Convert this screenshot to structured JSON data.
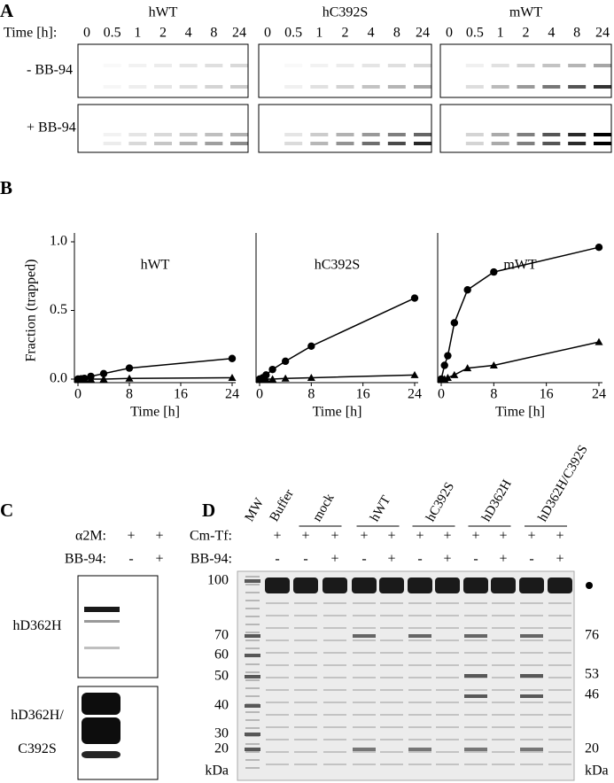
{
  "panel_labels": [
    "A",
    "B",
    "C",
    "D"
  ],
  "panel_a": {
    "time_label": "Time [h]:",
    "rows": [
      "- BB-94",
      "+ BB-94"
    ],
    "groups": [
      {
        "title": "hWT",
        "lanes": [
          "0",
          "0.5",
          "1",
          "2",
          "4",
          "8",
          "24"
        ]
      },
      {
        "title": "hC392S",
        "lanes": [
          "0",
          "0.5",
          "1",
          "2",
          "4",
          "8",
          "24"
        ]
      },
      {
        "title": "mWT",
        "lanes": [
          "0",
          "0.5",
          "1",
          "2",
          "4",
          "8",
          "24"
        ]
      }
    ]
  },
  "chart_data": [
    {
      "type": "line",
      "title": "hWT",
      "xlabel": "Time [h]",
      "ylabel": "Fraction (trapped)",
      "x": [
        0,
        0.5,
        1,
        2,
        4,
        8,
        24
      ],
      "xlim": [
        0,
        24
      ],
      "xticks": [
        0,
        8,
        16,
        24
      ],
      "ylim": [
        0,
        1
      ],
      "yticks": [
        {
          "value": 0,
          "label": "0.0"
        },
        {
          "value": 0.5,
          "label": "0.5"
        },
        {
          "value": 1,
          "label": "1.0"
        }
      ],
      "series": [
        {
          "color": "#000000",
          "marker": "circle",
          "values": [
            0,
            0.002,
            0.005,
            0.02,
            0.04,
            0.08,
            0.15
          ]
        },
        {
          "color": "#000000",
          "marker": "triangle",
          "values": [
            0,
            0,
            0,
            0,
            0,
            0.005,
            0.01
          ]
        }
      ]
    },
    {
      "type": "line",
      "title": "hC392S",
      "xlabel": "Time [h]",
      "x": [
        0,
        0.5,
        1,
        2,
        4,
        8,
        24
      ],
      "xlim": [
        0,
        24
      ],
      "xticks": [
        0,
        8,
        16,
        24
      ],
      "ylim": [
        0,
        1
      ],
      "series": [
        {
          "color": "#000000",
          "marker": "circle",
          "values": [
            0,
            0.01,
            0.03,
            0.07,
            0.13,
            0.24,
            0.59
          ]
        },
        {
          "color": "#000000",
          "marker": "triangle",
          "values": [
            0,
            0,
            0,
            0,
            0.005,
            0.01,
            0.03
          ]
        }
      ]
    },
    {
      "type": "line",
      "title": "mWT",
      "xlabel": "Time [h]",
      "x": [
        0,
        0.5,
        1,
        2,
        4,
        8,
        24
      ],
      "xlim": [
        0,
        24
      ],
      "xticks": [
        0,
        8,
        16,
        24
      ],
      "ylim": [
        0,
        1
      ],
      "series": [
        {
          "color": "#000000",
          "marker": "circle",
          "values": [
            0,
            0.1,
            0.17,
            0.41,
            0.65,
            0.78,
            0.96
          ]
        },
        {
          "color": "#000000",
          "marker": "triangle",
          "values": [
            0,
            0,
            0.01,
            0.03,
            0.08,
            0.1,
            0.27
          ]
        }
      ]
    }
  ],
  "panel_c": {
    "rows": [
      {
        "label": "α2M:",
        "values": [
          "+",
          "+"
        ]
      },
      {
        "label": "BB-94:",
        "values": [
          "-",
          "+"
        ]
      }
    ],
    "blots": [
      [
        "hD362H"
      ],
      [
        "hD362H/",
        "C392S"
      ]
    ]
  },
  "panel_d": {
    "headers": [
      "MW",
      "Buffer",
      "mock",
      "hWT",
      "hC392S",
      "hD362H",
      "hD362H/C392S"
    ],
    "rows": [
      {
        "label": "Cm-Tf:",
        "values": [
          "+",
          "+",
          "+",
          "+",
          "+",
          "+",
          "+",
          "+",
          "+",
          "+",
          "+"
        ]
      },
      {
        "label": "BB-94:",
        "values": [
          "-",
          "-",
          "+",
          "-",
          "+",
          "-",
          "+",
          "-",
          "+",
          "-",
          "+"
        ]
      }
    ],
    "left_markers": [
      "100",
      "70",
      "60",
      "50",
      "40",
      "30",
      "20",
      "kDa"
    ],
    "right_markers": [
      "76",
      "53",
      "46",
      "20",
      "kDa"
    ]
  }
}
